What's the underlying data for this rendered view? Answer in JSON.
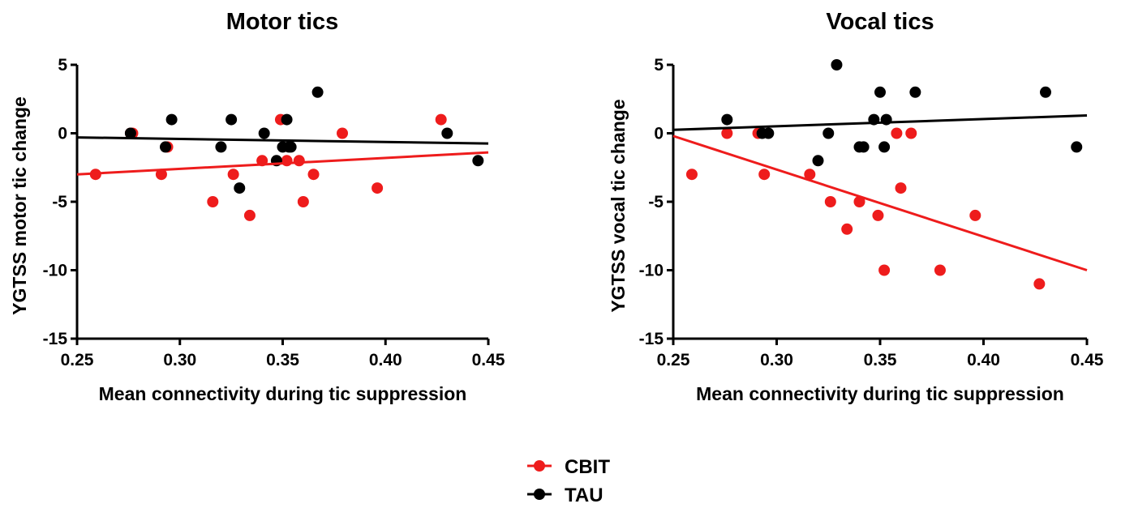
{
  "chart_data": [
    {
      "type": "scatter",
      "title": "Motor tics",
      "xlabel": "Mean connectivity during tic suppression",
      "ylabel": "YGTSS motor tic change",
      "xlim": [
        0.25,
        0.45
      ],
      "ylim": [
        -15,
        5
      ],
      "xticks": [
        "0.25",
        "0.30",
        "0.35",
        "0.40",
        "0.45"
      ],
      "yticks": [
        "5",
        "0",
        "-5",
        "-10",
        "-15"
      ],
      "xtick_values": [
        0.25,
        0.3,
        0.35,
        0.4,
        0.45
      ],
      "ytick_values": [
        5,
        0,
        -5,
        -10,
        -15
      ],
      "grid": false,
      "series": [
        {
          "name": "CBIT",
          "color": "#ee1c1c",
          "points": [
            [
              0.259,
              -3
            ],
            [
              0.276,
              0
            ],
            [
              0.277,
              0
            ],
            [
              0.291,
              -3
            ],
            [
              0.294,
              -1
            ],
            [
              0.316,
              -5
            ],
            [
              0.326,
              -3
            ],
            [
              0.334,
              -6
            ],
            [
              0.34,
              -2
            ],
            [
              0.349,
              1
            ],
            [
              0.352,
              -2
            ],
            [
              0.358,
              -2
            ],
            [
              0.36,
              -5
            ],
            [
              0.365,
              -3
            ],
            [
              0.379,
              0
            ],
            [
              0.396,
              -4
            ],
            [
              0.427,
              1
            ]
          ],
          "fit": [
            [
              0.25,
              -3.0
            ],
            [
              0.45,
              -1.4
            ]
          ]
        },
        {
          "name": "TAU",
          "color": "#000000",
          "points": [
            [
              0.276,
              0
            ],
            [
              0.293,
              -1
            ],
            [
              0.296,
              1
            ],
            [
              0.32,
              -1
            ],
            [
              0.325,
              1
            ],
            [
              0.329,
              -4
            ],
            [
              0.341,
              0
            ],
            [
              0.347,
              -2
            ],
            [
              0.35,
              -1
            ],
            [
              0.352,
              1
            ],
            [
              0.353,
              -1
            ],
            [
              0.354,
              -1
            ],
            [
              0.367,
              3
            ],
            [
              0.43,
              0
            ],
            [
              0.445,
              -2
            ]
          ],
          "fit": [
            [
              0.25,
              -0.3
            ],
            [
              0.45,
              -0.75
            ]
          ]
        }
      ]
    },
    {
      "type": "scatter",
      "title": "Vocal tics",
      "xlabel": "Mean connectivity during tic suppression",
      "ylabel": "YGTSS vocal tic change",
      "xlim": [
        0.25,
        0.45
      ],
      "ylim": [
        -15,
        5
      ],
      "xticks": [
        "0.25",
        "0.30",
        "0.35",
        "0.40",
        "0.45"
      ],
      "yticks": [
        "5",
        "0",
        "-5",
        "-10",
        "-15"
      ],
      "xtick_values": [
        0.25,
        0.3,
        0.35,
        0.4,
        0.45
      ],
      "ytick_values": [
        5,
        0,
        -5,
        -10,
        -15
      ],
      "grid": false,
      "series": [
        {
          "name": "CBIT",
          "color": "#ee1c1c",
          "points": [
            [
              0.259,
              -3
            ],
            [
              0.276,
              0
            ],
            [
              0.291,
              0
            ],
            [
              0.294,
              -3
            ],
            [
              0.316,
              -3
            ],
            [
              0.326,
              -5
            ],
            [
              0.334,
              -7
            ],
            [
              0.34,
              -5
            ],
            [
              0.349,
              -6
            ],
            [
              0.352,
              -10
            ],
            [
              0.358,
              0
            ],
            [
              0.36,
              -4
            ],
            [
              0.365,
              0
            ],
            [
              0.379,
              -10
            ],
            [
              0.396,
              -6
            ],
            [
              0.427,
              -11
            ]
          ],
          "fit": [
            [
              0.25,
              -0.2
            ],
            [
              0.45,
              -10.0
            ]
          ]
        },
        {
          "name": "TAU",
          "color": "#000000",
          "points": [
            [
              0.276,
              1
            ],
            [
              0.293,
              0
            ],
            [
              0.296,
              0
            ],
            [
              0.32,
              -2
            ],
            [
              0.325,
              0
            ],
            [
              0.329,
              5
            ],
            [
              0.34,
              -1
            ],
            [
              0.342,
              -1
            ],
            [
              0.347,
              1
            ],
            [
              0.35,
              3
            ],
            [
              0.352,
              -1
            ],
            [
              0.353,
              1
            ],
            [
              0.367,
              3
            ],
            [
              0.43,
              3
            ],
            [
              0.445,
              -1
            ]
          ],
          "fit": [
            [
              0.25,
              0.25
            ],
            [
              0.45,
              1.3
            ]
          ]
        }
      ]
    }
  ],
  "legend": {
    "items": [
      {
        "label": "CBIT",
        "color": "#ee1c1c"
      },
      {
        "label": "TAU",
        "color": "#000000"
      }
    ]
  }
}
